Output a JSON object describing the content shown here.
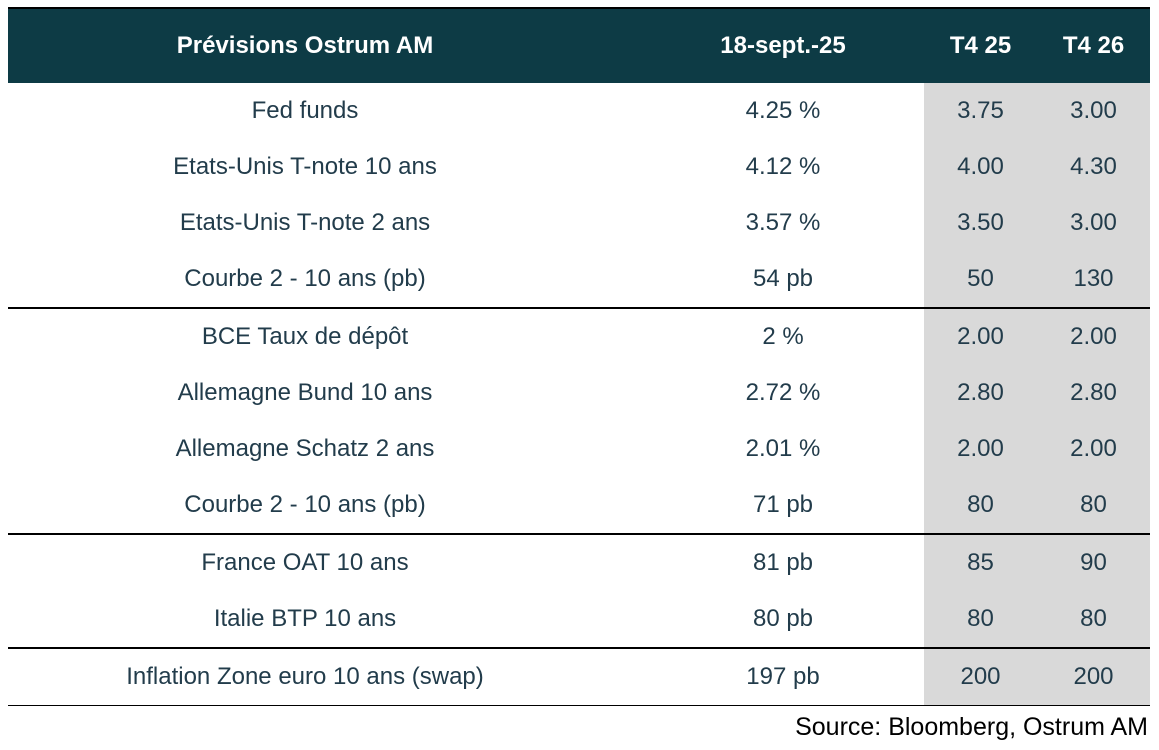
{
  "chart_data": {
    "type": "table",
    "title": "Prévisions Ostrum AM",
    "columns": [
      "Prévisions Ostrum AM",
      "18-sept.-25",
      "T4 25",
      "T4 26"
    ],
    "rows": [
      [
        "Fed funds",
        "4.25 %",
        "3.75",
        "3.00"
      ],
      [
        "Etats-Unis T-note 10 ans",
        "4.12 %",
        "4.00",
        "4.30"
      ],
      [
        "Etats-Unis T-note 2 ans",
        "3.57 %",
        "3.50",
        "3.00"
      ],
      [
        "Courbe 2 - 10 ans (pb)",
        "54 pb",
        "50",
        "130"
      ],
      [
        "BCE Taux de dépôt",
        "2 %",
        "2.00",
        "2.00"
      ],
      [
        "Allemagne Bund 10 ans",
        "2.72 %",
        "2.80",
        "2.80"
      ],
      [
        "Allemagne Schatz 2 ans",
        "2.01 %",
        "2.00",
        "2.00"
      ],
      [
        "Courbe 2 - 10 ans (pb)",
        "71 pb",
        "80",
        "80"
      ],
      [
        "France OAT 10 ans",
        "81 pb",
        "85",
        "90"
      ],
      [
        "Italie BTP 10 ans",
        "80 pb",
        "80",
        "80"
      ],
      [
        "Inflation Zone euro 10 ans (swap)",
        "197 pb",
        "200",
        "200"
      ]
    ],
    "section_breaks_after_rows": [
      3,
      7,
      9
    ],
    "source": "Source: Bloomberg, Ostrum AM",
    "layout_hints": {
      "forecast_columns_shaded": [
        "T4 25",
        "T4 26"
      ],
      "legend_position": "none",
      "grid": "horizontal section dividers only"
    }
  },
  "colors": {
    "header_bg": "#0d3b45",
    "header_text": "#ffffff",
    "body_text": "#223c4b",
    "forecast_shading": "#d9d9d9",
    "divider": "#000000",
    "source_text": "#000000"
  }
}
